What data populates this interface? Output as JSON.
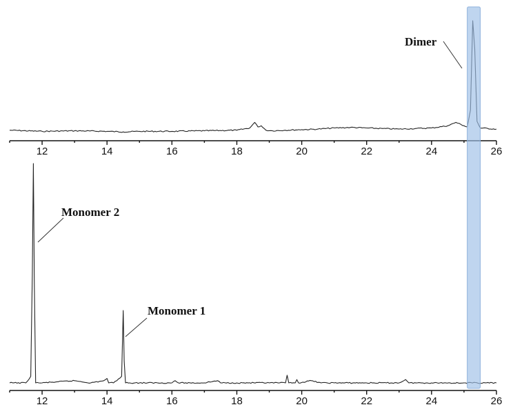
{
  "chart_data": [
    {
      "type": "line",
      "title": "",
      "xlabel": "",
      "ylabel": "",
      "xlim": [
        11,
        26
      ],
      "x_ticks": [
        "12",
        "14",
        "16",
        "18",
        "20",
        "22",
        "24",
        "26"
      ],
      "series": [
        {
          "x": [
            11.0,
            12.0,
            13.0,
            14.0,
            14.5,
            15.0,
            16.0,
            17.0,
            18.0,
            18.4,
            18.55,
            18.65,
            18.75,
            18.9,
            19.1,
            19.5,
            20.0,
            20.5,
            21.0,
            21.5,
            22.0,
            22.5,
            23.0,
            23.5,
            24.0,
            24.5,
            24.75,
            25.0,
            25.1,
            25.2,
            25.27,
            25.33,
            25.4,
            25.5,
            26.0
          ],
          "y": [
            0.02,
            0.01,
            0.015,
            0.01,
            0.005,
            0.01,
            0.01,
            0.015,
            0.02,
            0.04,
            0.09,
            0.05,
            0.06,
            0.02,
            0.015,
            0.02,
            0.025,
            0.03,
            0.04,
            0.045,
            0.04,
            0.035,
            0.03,
            0.035,
            0.04,
            0.06,
            0.09,
            0.06,
            0.05,
            0.2,
            1.0,
            0.75,
            0.1,
            0.04,
            0.03
          ]
        }
      ],
      "annotations": [
        {
          "text": "Dimer",
          "x": 25.27
        }
      ]
    },
    {
      "type": "line",
      "title": "",
      "xlabel": "",
      "ylabel": "",
      "xlim": [
        11,
        26
      ],
      "x_ticks": [
        "12",
        "14",
        "16",
        "18",
        "20",
        "22",
        "24",
        "26"
      ],
      "series": [
        {
          "x": [
            11.0,
            11.5,
            11.65,
            11.7,
            11.73,
            11.76,
            11.8,
            12.0,
            12.5,
            13.0,
            13.5,
            13.9,
            14.0,
            14.05,
            14.2,
            14.45,
            14.5,
            14.53,
            14.57,
            14.7,
            15.0,
            16.0,
            16.1,
            16.2,
            17.0,
            17.4,
            17.5,
            18.0,
            19.0,
            19.5,
            19.55,
            19.6,
            19.8,
            19.85,
            19.9,
            20.3,
            20.6,
            21.0,
            22.0,
            23.0,
            23.2,
            23.3,
            24.0,
            25.0,
            26.0
          ],
          "y": [
            0.0,
            0.0,
            0.03,
            0.5,
            1.0,
            0.45,
            0.0,
            0.0,
            0.005,
            0.01,
            0.0,
            0.01,
            0.02,
            0.0,
            0.0,
            0.03,
            0.33,
            0.1,
            0.0,
            0.0,
            0.0,
            0.0,
            0.01,
            0.0,
            0.0,
            0.01,
            0.0,
            0.0,
            0.0,
            0.0,
            0.035,
            0.0,
            0.0,
            0.015,
            0.0,
            0.01,
            0.0,
            0.0,
            0.0,
            0.0,
            0.015,
            0.0,
            0.0,
            0.0,
            0.0
          ]
        }
      ],
      "annotations": [
        {
          "text": "Monomer 2",
          "x": 11.73
        },
        {
          "text": "Monomer 1",
          "x": 14.5
        }
      ]
    }
  ],
  "highlight": {
    "x_range": [
      25.1,
      25.5
    ],
    "color": "#9dbfe6"
  },
  "colors": {
    "trace": "#222222",
    "axis": "#111111"
  }
}
